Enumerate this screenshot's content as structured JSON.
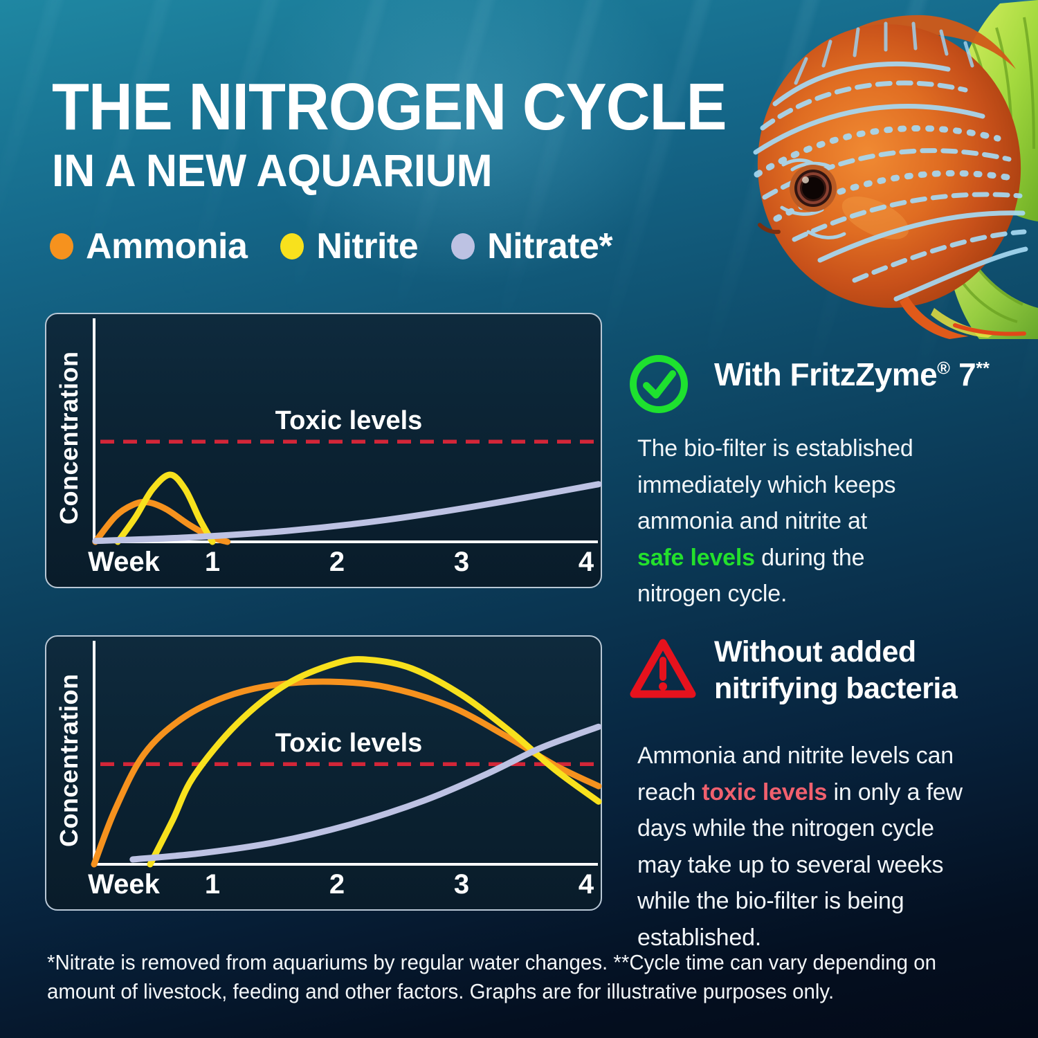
{
  "page": {
    "title_line1": "THE NITROGEN CYCLE",
    "title_line2": "IN A NEW AQUARIUM",
    "footnote_line1": "*Nitrate is removed from aquariums by regular water changes. **Cycle time can vary depending on",
    "footnote_line2": "amount of livestock, feeding and other factors. Graphs are for illustrative purposes only."
  },
  "legend": {
    "items": [
      {
        "label": "Ammonia",
        "color": "#f6921e"
      },
      {
        "label": "Nitrite",
        "color": "#f8e11d"
      },
      {
        "label": "Nitrate*",
        "color": "#bdc2e3"
      }
    ]
  },
  "sections": {
    "with_fritzzyme": {
      "icon": "check-circle",
      "icon_color": "#1ee12f",
      "heading_pre": "With FritzZyme",
      "heading_sup1": "®",
      "heading_mid": " 7",
      "heading_sup2": "**",
      "highlight_color": "#23e02c",
      "body_lines": [
        [
          {
            "text": "The bio-filter is established"
          }
        ],
        [
          {
            "text": "immediately which keeps"
          }
        ],
        [
          {
            "text": "ammonia and nitrite at"
          }
        ],
        [
          {
            "text": "safe levels",
            "highlight": true
          },
          {
            "text": " during the"
          }
        ],
        [
          {
            "text": "nitrogen cycle."
          }
        ]
      ]
    },
    "without_bacteria": {
      "icon": "warning-triangle",
      "icon_color": "#e6121d",
      "heading_line1": "Without added",
      "heading_line2": "nitrifying bacteria",
      "highlight_color": "#f0606e",
      "body_lines": [
        [
          {
            "text": "Ammonia and nitrite levels can"
          }
        ],
        [
          {
            "text": "reach "
          },
          {
            "text": "toxic levels",
            "highlight": true
          },
          {
            "text": " in only a few"
          }
        ],
        [
          {
            "text": "days while the nitrogen cycle"
          }
        ],
        [
          {
            "text": "may take up to several weeks"
          }
        ],
        [
          {
            "text": "while the bio-filter is being"
          }
        ],
        [
          {
            "text": "established."
          }
        ]
      ]
    }
  },
  "chart_data": [
    {
      "type": "line",
      "ylabel": "Concentration",
      "xlabel_word": "Week",
      "xticks": [
        {
          "week": 1,
          "label": "1"
        },
        {
          "week": 2,
          "label": "2"
        },
        {
          "week": 3,
          "label": "3"
        },
        {
          "week": 4,
          "label": "4"
        }
      ],
      "toxic_label": "Toxic levels",
      "toxic_level": 0.455,
      "toxic_color": "#d32638",
      "x_range": [
        0,
        4.1
      ],
      "y_range": [
        0,
        1
      ],
      "grid": false,
      "legend_position": "none",
      "series": [
        {
          "name": "Ammonia",
          "color": "#f6921e",
          "points": [
            [
              0.06,
              0
            ],
            [
              0.22,
              0.115
            ],
            [
              0.36,
              0.168
            ],
            [
              0.48,
              0.18
            ],
            [
              0.63,
              0.148
            ],
            [
              0.82,
              0.075
            ],
            [
              1.0,
              0.02
            ],
            [
              1.12,
              0
            ]
          ]
        },
        {
          "name": "Nitrite",
          "color": "#f8e11d",
          "points": [
            [
              0.24,
              0
            ],
            [
              0.38,
              0.11
            ],
            [
              0.52,
              0.24
            ],
            [
              0.66,
              0.305
            ],
            [
              0.78,
              0.24
            ],
            [
              0.9,
              0.1
            ],
            [
              1.0,
              0
            ]
          ]
        },
        {
          "name": "Nitrate",
          "color": "#bdc2e3",
          "points": [
            [
              0.06,
              0.004
            ],
            [
              0.8,
              0.02
            ],
            [
              1.6,
              0.05
            ],
            [
              2.4,
              0.1
            ],
            [
              3.2,
              0.17
            ],
            [
              4.1,
              0.262
            ]
          ]
        }
      ]
    },
    {
      "type": "line",
      "ylabel": "Concentration",
      "xlabel_word": "Week",
      "xticks": [
        {
          "week": 1,
          "label": "1"
        },
        {
          "week": 2,
          "label": "2"
        },
        {
          "week": 3,
          "label": "3"
        },
        {
          "week": 4,
          "label": "4"
        }
      ],
      "toxic_label": "Toxic levels",
      "toxic_level": 0.455,
      "toxic_color": "#d32638",
      "x_range": [
        0,
        4.1
      ],
      "y_range": [
        0,
        1
      ],
      "grid": false,
      "legend_position": "none",
      "series": [
        {
          "name": "Ammonia",
          "color": "#f6921e",
          "points": [
            [
              0.05,
              0
            ],
            [
              0.22,
              0.25
            ],
            [
              0.45,
              0.5
            ],
            [
              0.75,
              0.66
            ],
            [
              1.1,
              0.76
            ],
            [
              1.5,
              0.815
            ],
            [
              1.95,
              0.83
            ],
            [
              2.4,
              0.805
            ],
            [
              2.9,
              0.72
            ],
            [
              3.35,
              0.585
            ],
            [
              3.75,
              0.45
            ],
            [
              4.1,
              0.355
            ]
          ]
        },
        {
          "name": "Nitrite",
          "color": "#f8e11d",
          "points": [
            [
              0.5,
              0
            ],
            [
              0.68,
              0.2
            ],
            [
              0.85,
              0.4
            ],
            [
              1.2,
              0.64
            ],
            [
              1.6,
              0.82
            ],
            [
              2.0,
              0.915
            ],
            [
              2.25,
              0.93
            ],
            [
              2.6,
              0.89
            ],
            [
              3.0,
              0.77
            ],
            [
              3.4,
              0.6
            ],
            [
              3.75,
              0.43
            ],
            [
              4.1,
              0.285
            ]
          ]
        },
        {
          "name": "Nitrate",
          "color": "#bdc2e3",
          "points": [
            [
              0.36,
              0.022
            ],
            [
              0.9,
              0.05
            ],
            [
              1.5,
              0.1
            ],
            [
              2.1,
              0.18
            ],
            [
              2.7,
              0.29
            ],
            [
              3.2,
              0.41
            ],
            [
              3.6,
              0.52
            ],
            [
              3.9,
              0.585
            ],
            [
              4.1,
              0.625
            ]
          ]
        }
      ]
    }
  ]
}
